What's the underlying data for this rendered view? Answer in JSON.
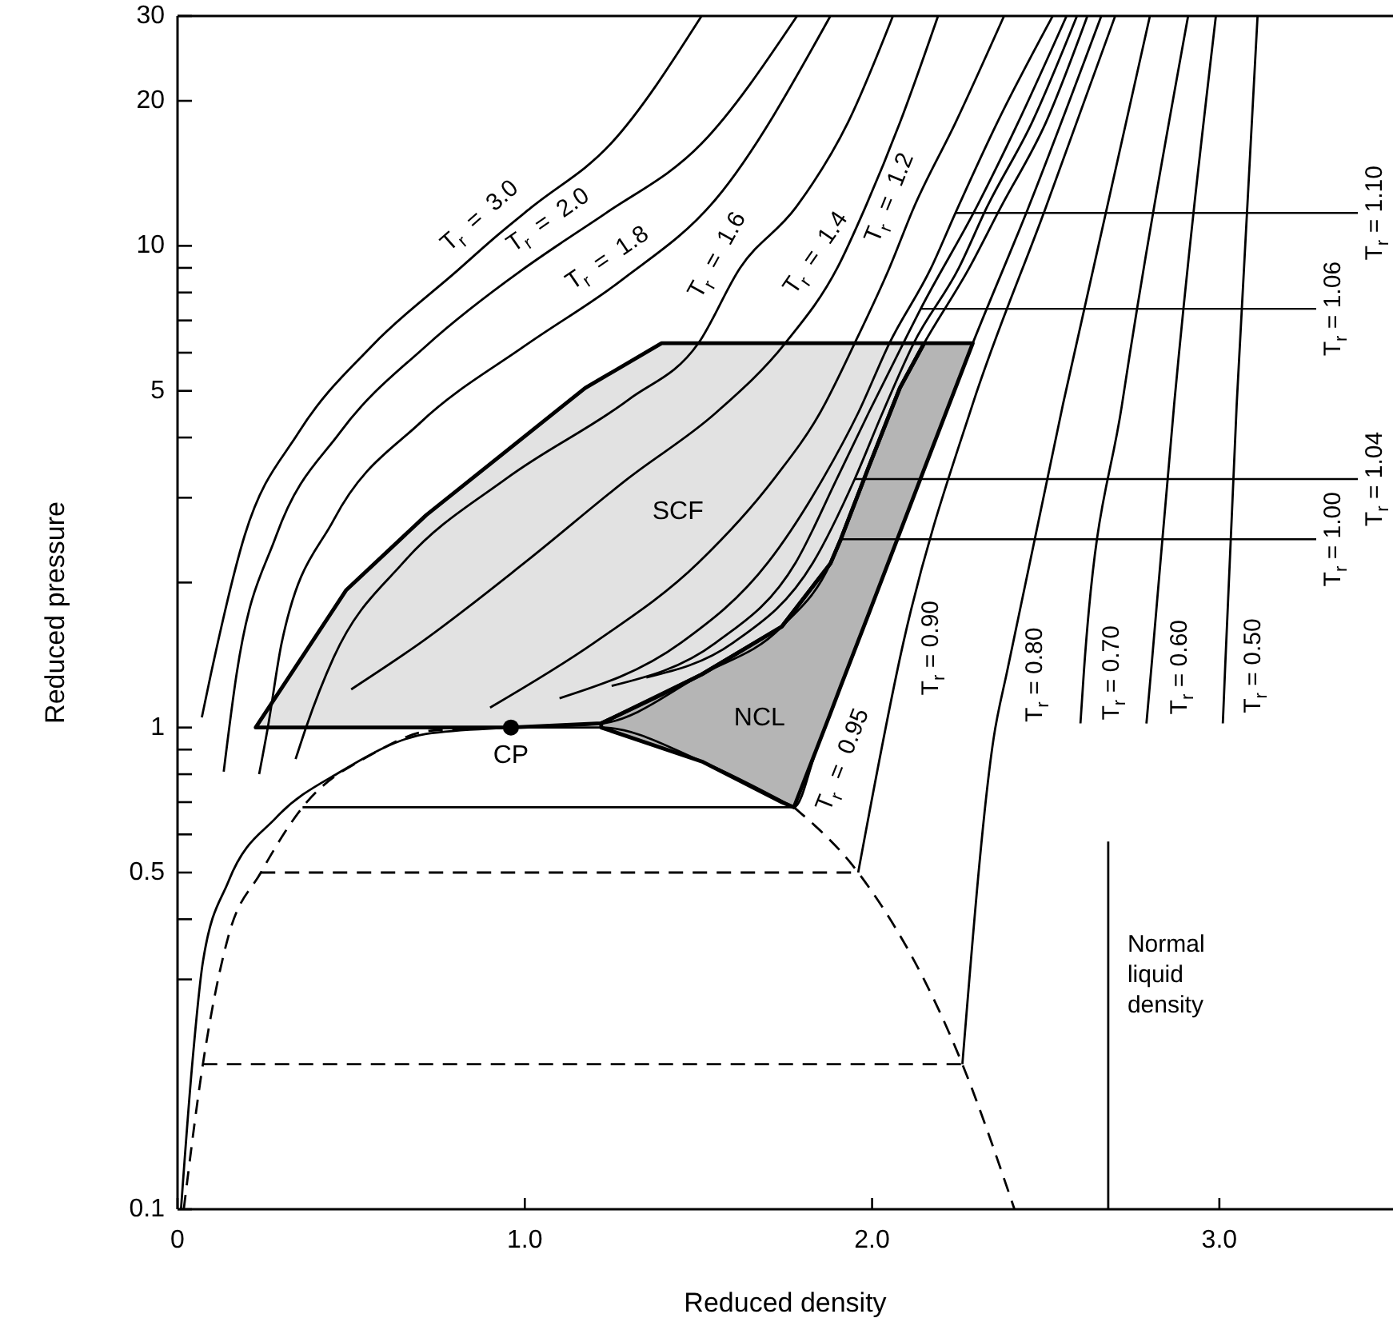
{
  "chart_data": {
    "type": "line",
    "xlabel": "Reduced density",
    "ylabel": "Reduced pressure",
    "log": "y",
    "xlim": [
      0,
      3.5
    ],
    "ylim": [
      0.1,
      30
    ],
    "xticks": [
      0,
      {
        "value": 1,
        "label": "1.0"
      },
      {
        "value": 2,
        "label": "2.0"
      },
      {
        "value": 3,
        "label": "3.0"
      }
    ],
    "yticks": [
      0.1,
      {
        "value": 0.3,
        "label": null
      },
      {
        "value": 0.4,
        "label": null
      },
      0.5,
      {
        "value": 0.6,
        "label": null
      },
      {
        "value": 0.7,
        "label": null
      },
      {
        "value": 0.8,
        "label": null
      },
      {
        "value": 0.9,
        "label": null
      },
      1,
      {
        "value": 2,
        "label": null
      },
      {
        "value": 3,
        "label": null
      },
      {
        "value": 4,
        "label": null
      },
      5,
      {
        "value": 6,
        "label": null
      },
      {
        "value": 7,
        "label": null
      },
      {
        "value": 8,
        "label": null
      },
      {
        "value": 9,
        "label": null
      },
      10,
      20,
      30
    ],
    "series": [
      {
        "type": "area",
        "name": "SCF",
        "color": "#e2e2e2",
        "x": [
          0.225,
          0.486,
          0.716,
          0.945,
          1.174,
          1.22,
          1.394,
          2.15,
          2.08,
          1.99,
          1.91,
          1.88,
          1.74,
          1.51,
          1.394,
          1.22,
          0.96
        ],
        "values": [
          1,
          1.93,
          2.76,
          3.74,
          5.07,
          5.3,
          6.28,
          6.28,
          5.07,
          3.47,
          2.46,
          2.19,
          1.62,
          1.29,
          1.17,
          1.02,
          1.0
        ]
      },
      {
        "type": "area",
        "name": "NCL",
        "color": "#b5b5b5",
        "x": [
          1.22,
          1.51,
          1.74,
          1.88,
          1.91,
          1.99,
          2.08,
          2.15,
          2.29,
          2.15,
          2.08,
          1.99,
          1.91,
          1.88,
          1.775,
          1.74,
          1.51,
          1.22
        ],
        "values": [
          1.02,
          1.29,
          1.62,
          2.19,
          2.46,
          3.47,
          5.07,
          6.28,
          6.28,
          3.44,
          2.54,
          1.72,
          1.22,
          1.07,
          0.683,
          0.7,
          0.85,
          1.0
        ]
      },
      {
        "color": "#000000",
        "x": [
          0.07,
          0.096,
          0.193,
          0.349,
          0.56,
          0.807,
          0.92,
          1.018,
          1.248,
          1.509
        ],
        "values": [
          1.05,
          1.29,
          2.5,
          4.1,
          6.2,
          8.9,
          10.5,
          12,
          16.3,
          30
        ]
      },
      {
        "color": "#000000",
        "x": [
          0.133,
          0.17,
          0.284,
          0.468,
          0.716,
          0.991,
          1.11,
          1.234,
          1.509,
          1.784
        ],
        "values": [
          0.81,
          1.29,
          2.5,
          4.1,
          6.2,
          8.9,
          10.2,
          11.7,
          16.3,
          30
        ]
      },
      {
        "color": "#000000",
        "x": [
          0.235,
          0.26,
          0.3,
          0.45,
          0.7,
          1.0,
          1.28,
          1.55,
          1.88
        ],
        "values": [
          0.8,
          1.0,
          1.5,
          2.7,
          4.3,
          6.2,
          8.5,
          12.5,
          30
        ]
      },
      {
        "color": "#000000",
        "x": [
          0.34,
          0.37,
          0.45,
          0.65,
          0.95,
          1.3,
          1.5,
          1.62,
          1.78,
          1.93,
          2.06
        ],
        "values": [
          0.86,
          1.0,
          1.4,
          2.2,
          3.3,
          4.8,
          6.28,
          9,
          12,
          18,
          30
        ]
      },
      {
        "color": "#000000",
        "x": [
          0.5,
          0.7,
          1.0,
          1.3,
          1.55,
          1.75,
          1.9,
          1.98,
          2.08,
          2.19
        ],
        "values": [
          1.2,
          1.5,
          2.2,
          3.3,
          4.5,
          6.28,
          9,
          12,
          18,
          30
        ]
      },
      {
        "color": "#000000",
        "x": [
          0.9,
          1.2,
          1.5,
          1.72,
          1.85,
          1.95,
          2.05,
          2.12,
          2.24,
          2.38
        ],
        "values": [
          1.1,
          1.5,
          2.2,
          3.3,
          4.5,
          6.28,
          9,
          12,
          18,
          30
        ]
      },
      {
        "color": "#000000",
        "x": [
          1.1,
          1.45,
          1.7,
          1.86,
          1.96,
          2.05,
          2.17,
          2.24,
          2.36,
          2.52
        ],
        "values": [
          1.15,
          1.5,
          2.2,
          3.3,
          4.5,
          6.28,
          9,
          11.7,
          18,
          30
        ]
      },
      {
        "color": "#000000",
        "x": [
          1.25,
          1.55,
          1.78,
          1.9,
          1.99,
          2.09,
          2.14,
          2.3,
          2.42,
          2.56
        ],
        "values": [
          1.22,
          1.5,
          2.2,
          3.3,
          4.5,
          6.28,
          7.4,
          12,
          18,
          30
        ]
      },
      {
        "color": "#000000",
        "x": [
          1.35,
          1.6,
          1.83,
          1.95,
          2.03,
          2.12,
          2.25,
          2.33,
          2.46,
          2.59
        ],
        "values": [
          1.27,
          1.5,
          2.2,
          3.28,
          4.5,
          6.28,
          9,
          12,
          18,
          30
        ]
      },
      {
        "color": "#000000",
        "x": [
          0.01,
          0.041,
          0.073,
          0.147,
          0.284,
          0.47,
          0.716,
          0.96,
          1.22,
          1.51,
          1.74,
          1.88,
          1.91,
          1.99,
          2.08,
          2.15,
          2.28,
          2.37,
          2.5,
          2.62
        ],
        "values": [
          0.1,
          0.195,
          0.326,
          0.48,
          0.65,
          0.81,
          0.97,
          1.0,
          1.02,
          1.29,
          1.62,
          2.19,
          2.46,
          3.47,
          5.07,
          6.28,
          9,
          12,
          18,
          30
        ]
      },
      {
        "color": "#000000",
        "x": [
          0.36,
          1.775,
          1.84,
          1.99,
          2.15,
          2.29,
          2.45,
          2.66
        ],
        "values": [
          0.683,
          0.683,
          0.9,
          1.72,
          3.44,
          6.28,
          12,
          30
        ]
      },
      {
        "color": "#000000",
        "x": [
          1.96,
          2.09,
          2.29,
          2.5,
          2.7
        ],
        "values": [
          0.5,
          1.5,
          4.7,
          12,
          30
        ]
      },
      {
        "color": "#000000",
        "x": [
          2.26,
          2.35,
          2.39,
          2.55,
          2.8
        ],
        "values": [
          0.2,
          0.95,
          1.32,
          4.7,
          30
        ]
      },
      {
        "color": "#000000",
        "x": [
          2.6,
          2.61,
          2.72,
          2.91
        ],
        "values": [
          1.02,
          1.31,
          4.7,
          30
        ]
      },
      {
        "color": "#000000",
        "x": [
          2.79,
          2.805,
          2.87,
          2.99
        ],
        "values": [
          1.02,
          1.35,
          4.7,
          30
        ]
      },
      {
        "color": "#000000",
        "x": [
          3.01,
          3.017,
          3.05,
          3.11
        ],
        "values": [
          1.02,
          1.35,
          4.7,
          30
        ]
      },
      {
        "color": "#000000",
        "line_style": "dashed",
        "x": [
          0.018,
          0.073,
          0.147,
          0.24,
          0.36,
          0.56,
          0.73,
          0.96
        ],
        "values": [
          0.1,
          0.2,
          0.37,
          0.5,
          0.683,
          0.88,
          0.985,
          1.0
        ]
      },
      {
        "color": "#000000",
        "x": [
          0.96,
          1.22,
          1.51,
          1.775
        ],
        "values": [
          1.0,
          1.0,
          0.85,
          0.683
        ]
      },
      {
        "color": "#000000",
        "line_style": "dashed",
        "x": [
          1.775,
          1.96,
          2.26,
          2.41
        ],
        "values": [
          0.683,
          0.5,
          0.2,
          0.1
        ]
      },
      {
        "color": "#000000",
        "line_style": "dashed",
        "x": [
          0.24,
          1.96
        ],
        "values": [
          0.5,
          0.5
        ]
      },
      {
        "color": "#000000",
        "line_style": "dashed",
        "x": [
          0.073,
          2.26
        ],
        "values": [
          0.2,
          0.2
        ]
      },
      {
        "name": "Normal liquid density",
        "color": "#000000",
        "x": [
          2.68,
          2.68
        ],
        "values": [
          0.1,
          0.58
        ]
      },
      {
        "type": "scatter",
        "name": "CP",
        "color": "#000000",
        "marker": "circle",
        "x": [
          0.96
        ],
        "values": [
          1.0
        ]
      }
    ],
    "annotations": [
      {
        "text": "T$_{r}$ = 3.0",
        "x": 0.92,
        "y": 10.5
      },
      {
        "text": "T$_{r}$ = 2.0",
        "x": 1.11,
        "y": 10.2
      },
      {
        "text": "T$_{r}$ = 1.8",
        "x": 1.28,
        "y": 8.5
      },
      {
        "text": "T$_{r}$ = 1.6",
        "x": 1.62,
        "y": 9
      },
      {
        "text": "T$_{r}$ = 1.4",
        "x": 1.9,
        "y": 9
      },
      {
        "text": "T$_{r}$ = 1.2",
        "x": 2.12,
        "y": 12
      },
      {
        "text": "T$_{r}$ = 1.10",
        "x": 2.24,
        "y": 11.7
      },
      {
        "text": "T$_{r}$ = 1.06",
        "x": 2.14,
        "y": 7.4
      },
      {
        "text": "T$_{r}$ = 1.04",
        "x": 1.95,
        "y": 3.28
      },
      {
        "text": "T$_{r}$ = 1.00",
        "x": 1.91,
        "y": 2.46
      },
      {
        "text": "T$_{r}$ = 0.95",
        "x": 1.84,
        "y": 0.9
      },
      {
        "text": "T$_{r}$ = 0.90",
        "x": 2.09,
        "y": 1.5
      },
      {
        "text": "T$_{r}$ = 0.80",
        "x": 2.39,
        "y": 1.32
      },
      {
        "text": "T$_{r}$ = 0.70",
        "x": 2.61,
        "y": 1.31
      },
      {
        "text": "T$_{r}$ = 0.60",
        "x": 2.805,
        "y": 1.35
      },
      {
        "text": "T$_{r}$ = 0.50",
        "x": 3.017,
        "y": 1.35
      }
    ]
  }
}
